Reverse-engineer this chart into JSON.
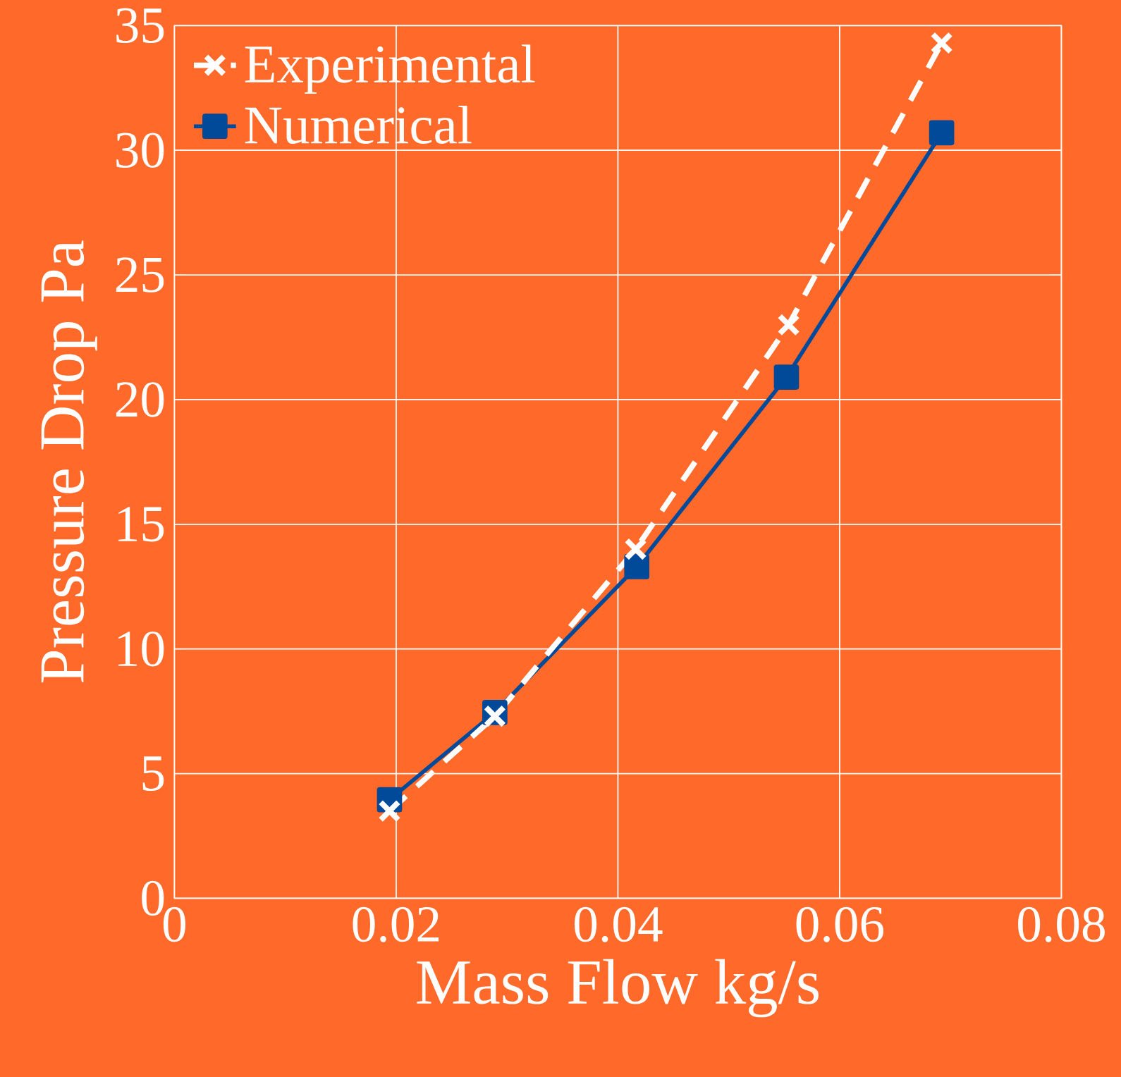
{
  "chart_data": {
    "type": "line",
    "xlabel": "Mass Flow kg/s",
    "ylabel": "Pressure Drop Pa",
    "xlim": [
      0,
      0.08
    ],
    "xticks": [
      0,
      0.02,
      0.04,
      0.06,
      0.08
    ],
    "ylim": [
      0,
      35
    ],
    "yticks": [
      0,
      5,
      10,
      15,
      20,
      25,
      30,
      35
    ],
    "grid": true,
    "legend": "top left",
    "series": [
      {
        "name": "Experimental",
        "color": "#ffffff",
        "marker": "cross",
        "line_style": "dashed",
        "x": [
          0.0194,
          0.0289,
          0.0416,
          0.0554,
          0.0692
        ],
        "values": [
          3.5,
          7.3,
          14.0,
          23.0,
          34.3
        ]
      },
      {
        "name": "Numerical",
        "color": "#004a99",
        "marker": "square",
        "line_style": "solid",
        "x": [
          0.0194,
          0.0289,
          0.0417,
          0.0552,
          0.0692
        ],
        "values": [
          3.95,
          7.45,
          13.3,
          20.9,
          30.7
        ]
      }
    ]
  }
}
